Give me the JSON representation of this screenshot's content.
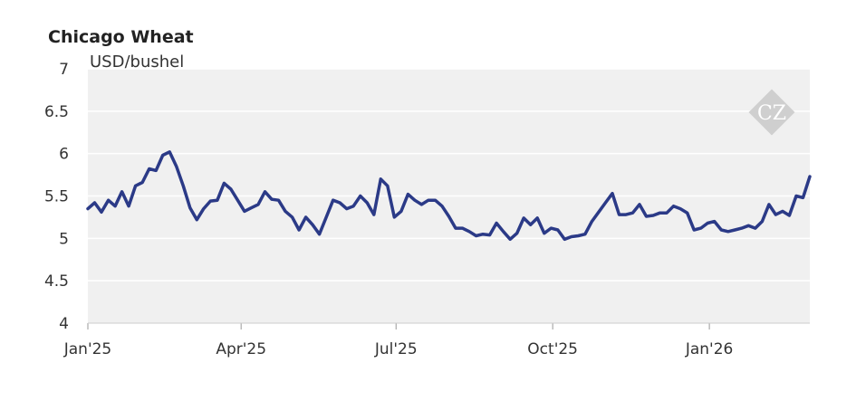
{
  "chart_data": {
    "type": "line",
    "title": "Chicago Wheat",
    "ylabel": "USD/bushel",
    "ylim": [
      4,
      7
    ],
    "yticks": [
      "4",
      "4.5",
      "5",
      "5.5",
      "6",
      "6.5",
      "7"
    ],
    "xlim": [
      "2025-01-01",
      "2026-03-01"
    ],
    "xticks": [
      {
        "label": "Jan'25",
        "date": "2025-01-01"
      },
      {
        "label": "Apr'25",
        "date": "2025-04-01"
      },
      {
        "label": "Jul'25",
        "date": "2025-07-01"
      },
      {
        "label": "Oct'25",
        "date": "2025-10-01"
      },
      {
        "label": "Jan'26",
        "date": "2026-01-01"
      }
    ],
    "grid": true,
    "line_color": "#2b3a87",
    "series": [
      {
        "x": [
          "2025-01-01",
          "2025-01-05",
          "2025-01-09",
          "2025-01-13",
          "2025-01-17",
          "2025-01-21",
          "2025-01-25",
          "2025-01-29",
          "2025-02-02",
          "2025-02-06",
          "2025-02-10",
          "2025-02-14",
          "2025-02-18",
          "2025-02-22",
          "2025-02-26",
          "2025-03-02",
          "2025-03-06",
          "2025-03-10",
          "2025-03-14",
          "2025-03-18",
          "2025-03-22",
          "2025-03-26",
          "2025-03-30",
          "2025-04-03",
          "2025-04-07",
          "2025-04-11",
          "2025-04-15",
          "2025-04-19",
          "2025-04-23",
          "2025-04-27",
          "2025-05-01",
          "2025-05-05",
          "2025-05-09",
          "2025-05-13",
          "2025-05-17",
          "2025-05-21",
          "2025-05-25",
          "2025-05-29",
          "2025-06-02",
          "2025-06-06",
          "2025-06-10",
          "2025-06-14",
          "2025-06-18",
          "2025-06-22",
          "2025-06-26",
          "2025-06-30",
          "2025-07-04",
          "2025-07-08",
          "2025-07-12",
          "2025-07-16",
          "2025-07-20",
          "2025-07-24",
          "2025-07-28",
          "2025-08-01",
          "2025-08-05",
          "2025-08-09",
          "2025-08-13",
          "2025-08-17",
          "2025-08-21",
          "2025-08-25",
          "2025-08-29",
          "2025-09-02",
          "2025-09-06",
          "2025-09-10",
          "2025-09-14",
          "2025-09-18",
          "2025-09-22",
          "2025-09-26",
          "2025-09-30",
          "2025-10-04",
          "2025-10-08",
          "2025-10-12",
          "2025-10-16",
          "2025-10-20",
          "2025-10-24",
          "2025-10-28",
          "2025-11-01",
          "2025-11-05",
          "2025-11-09",
          "2025-11-13",
          "2025-11-17",
          "2025-11-21",
          "2025-11-25",
          "2025-11-29",
          "2025-12-03",
          "2025-12-07",
          "2025-12-11",
          "2025-12-15",
          "2025-12-19",
          "2025-12-23",
          "2025-12-27",
          "2025-12-31",
          "2026-01-04",
          "2026-01-08",
          "2026-01-12",
          "2026-01-16",
          "2026-01-20",
          "2026-01-24",
          "2026-01-28",
          "2026-02-01",
          "2026-02-05",
          "2026-02-09",
          "2026-02-13",
          "2026-02-17",
          "2026-02-21",
          "2026-02-25",
          "2026-03-01"
        ],
        "values": [
          5.35,
          5.42,
          5.31,
          5.45,
          5.38,
          5.55,
          5.38,
          5.62,
          5.66,
          5.82,
          5.8,
          5.98,
          6.02,
          5.85,
          5.62,
          5.36,
          5.22,
          5.35,
          5.44,
          5.45,
          5.65,
          5.58,
          5.45,
          5.32,
          5.36,
          5.4,
          5.55,
          5.46,
          5.45,
          5.32,
          5.25,
          5.1,
          5.25,
          5.16,
          5.05,
          5.25,
          5.45,
          5.42,
          5.35,
          5.38,
          5.5,
          5.42,
          5.28,
          5.7,
          5.62,
          5.25,
          5.32,
          5.52,
          5.45,
          5.4,
          5.45,
          5.45,
          5.38,
          5.26,
          5.12,
          5.12,
          5.08,
          5.03,
          5.05,
          5.04,
          5.18,
          5.08,
          4.99,
          5.06,
          5.24,
          5.16,
          5.24,
          5.06,
          5.12,
          5.1,
          4.99,
          5.02,
          5.03,
          5.05,
          5.2,
          5.31,
          5.42,
          5.53,
          5.28,
          5.28,
          5.3,
          5.4,
          5.26,
          5.27,
          5.3,
          5.3,
          5.38,
          5.35,
          5.3,
          5.1,
          5.12,
          5.18,
          5.2,
          5.1,
          5.08,
          5.1,
          5.12,
          5.15,
          5.12,
          5.2,
          5.4,
          5.28,
          5.32,
          5.27,
          5.5,
          5.48,
          5.73
        ]
      }
    ]
  },
  "watermark": {
    "text": "CZ"
  }
}
